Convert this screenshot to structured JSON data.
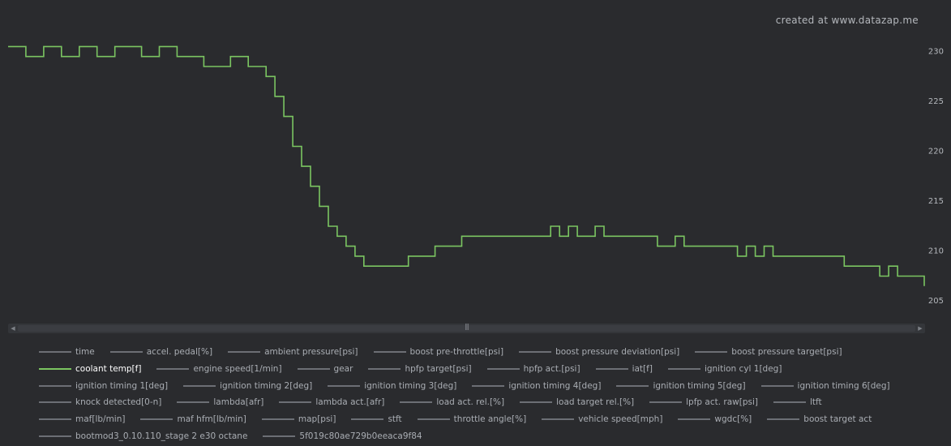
{
  "watermark": "created at www.datazap.me",
  "chart_data": {
    "type": "line",
    "xlabel": "",
    "ylabel": "",
    "ylim": [
      204.6,
      231.0
    ],
    "yticks": [
      230,
      225,
      220,
      215,
      210,
      205
    ],
    "grid": false,
    "legend_position": "bottom",
    "series": [
      {
        "name": "coolant temp[f]",
        "color": "#7bc561",
        "x": [
          0,
          1,
          2,
          3,
          4,
          5,
          6,
          7,
          8,
          9,
          10,
          11,
          12,
          13,
          14,
          15,
          16,
          17,
          18,
          19,
          20,
          21,
          22,
          23,
          24,
          25,
          26,
          27,
          28,
          29,
          30,
          31,
          32,
          33,
          34,
          35,
          36,
          37,
          38,
          39,
          40,
          41,
          42,
          43,
          44,
          45,
          46,
          47,
          48,
          49,
          50,
          51,
          52,
          53,
          54,
          55,
          56,
          57,
          58,
          59,
          60,
          61,
          62,
          63,
          64,
          65,
          66,
          67,
          68,
          69,
          70,
          71,
          72,
          73,
          74,
          75,
          76,
          77,
          78,
          79,
          80,
          81,
          82,
          83,
          84,
          85,
          86,
          87,
          88,
          89,
          90,
          91,
          92,
          93,
          94,
          95,
          96,
          97,
          98,
          99,
          100,
          101,
          102,
          103
        ],
        "y": [
          230.4,
          230.4,
          229.4,
          229.4,
          230.4,
          230.4,
          229.4,
          229.4,
          230.4,
          230.4,
          229.4,
          229.4,
          230.4,
          230.4,
          230.4,
          229.4,
          229.4,
          230.4,
          230.4,
          229.4,
          229.4,
          229.4,
          228.4,
          228.4,
          228.4,
          229.4,
          229.4,
          228.4,
          228.4,
          227.4,
          225.4,
          223.4,
          220.4,
          218.4,
          216.4,
          214.4,
          212.4,
          211.4,
          210.4,
          209.4,
          208.4,
          208.4,
          208.4,
          208.4,
          208.4,
          209.4,
          209.4,
          209.4,
          210.4,
          210.4,
          210.4,
          211.4,
          211.4,
          211.4,
          211.4,
          211.4,
          211.4,
          211.4,
          211.4,
          211.4,
          211.4,
          212.4,
          211.4,
          212.4,
          211.4,
          211.4,
          212.4,
          211.4,
          211.4,
          211.4,
          211.4,
          211.4,
          211.4,
          210.4,
          210.4,
          211.4,
          210.4,
          210.4,
          210.4,
          210.4,
          210.4,
          210.4,
          209.4,
          210.4,
          209.4,
          210.4,
          209.4,
          209.4,
          209.4,
          209.4,
          209.4,
          209.4,
          209.4,
          209.4,
          208.4,
          208.4,
          208.4,
          208.4,
          207.4,
          208.4,
          207.4,
          207.4,
          207.4,
          206.4
        ]
      }
    ]
  },
  "legend": [
    "time",
    "accel. pedal[%]",
    "ambient pressure[psi]",
    "boost pre-throttle[psi]",
    "boost pressure deviation[psi]",
    "boost pressure target[psi]",
    "coolant temp[f]",
    "engine speed[1/min]",
    "gear",
    "hpfp target[psi]",
    "hpfp act.[psi]",
    "iat[f]",
    "ignition cyl 1[deg]",
    "ignition timing 1[deg]",
    "ignition timing 2[deg]",
    "ignition timing 3[deg]",
    "ignition timing 4[deg]",
    "ignition timing 5[deg]",
    "ignition timing 6[deg]",
    "knock detected[0-n]",
    "lambda[afr]",
    "lambda act.[afr]",
    "load act. rel.[%]",
    "load target rel.[%]",
    "lpfp act. raw[psi]",
    "ltft",
    "maf[lb/min]",
    "maf hfm[lb/min]",
    "map[psi]",
    "stft",
    "throttle angle[%]",
    "vehicle speed[mph]",
    "wgdc[%]",
    "boost target act",
    "bootmod3_0.10.110_stage 2 e30 octane",
    "5f019c80ae729b0eeaca9f84"
  ],
  "active_legend": "coolant temp[f]",
  "scrollbar_grip": "|||"
}
